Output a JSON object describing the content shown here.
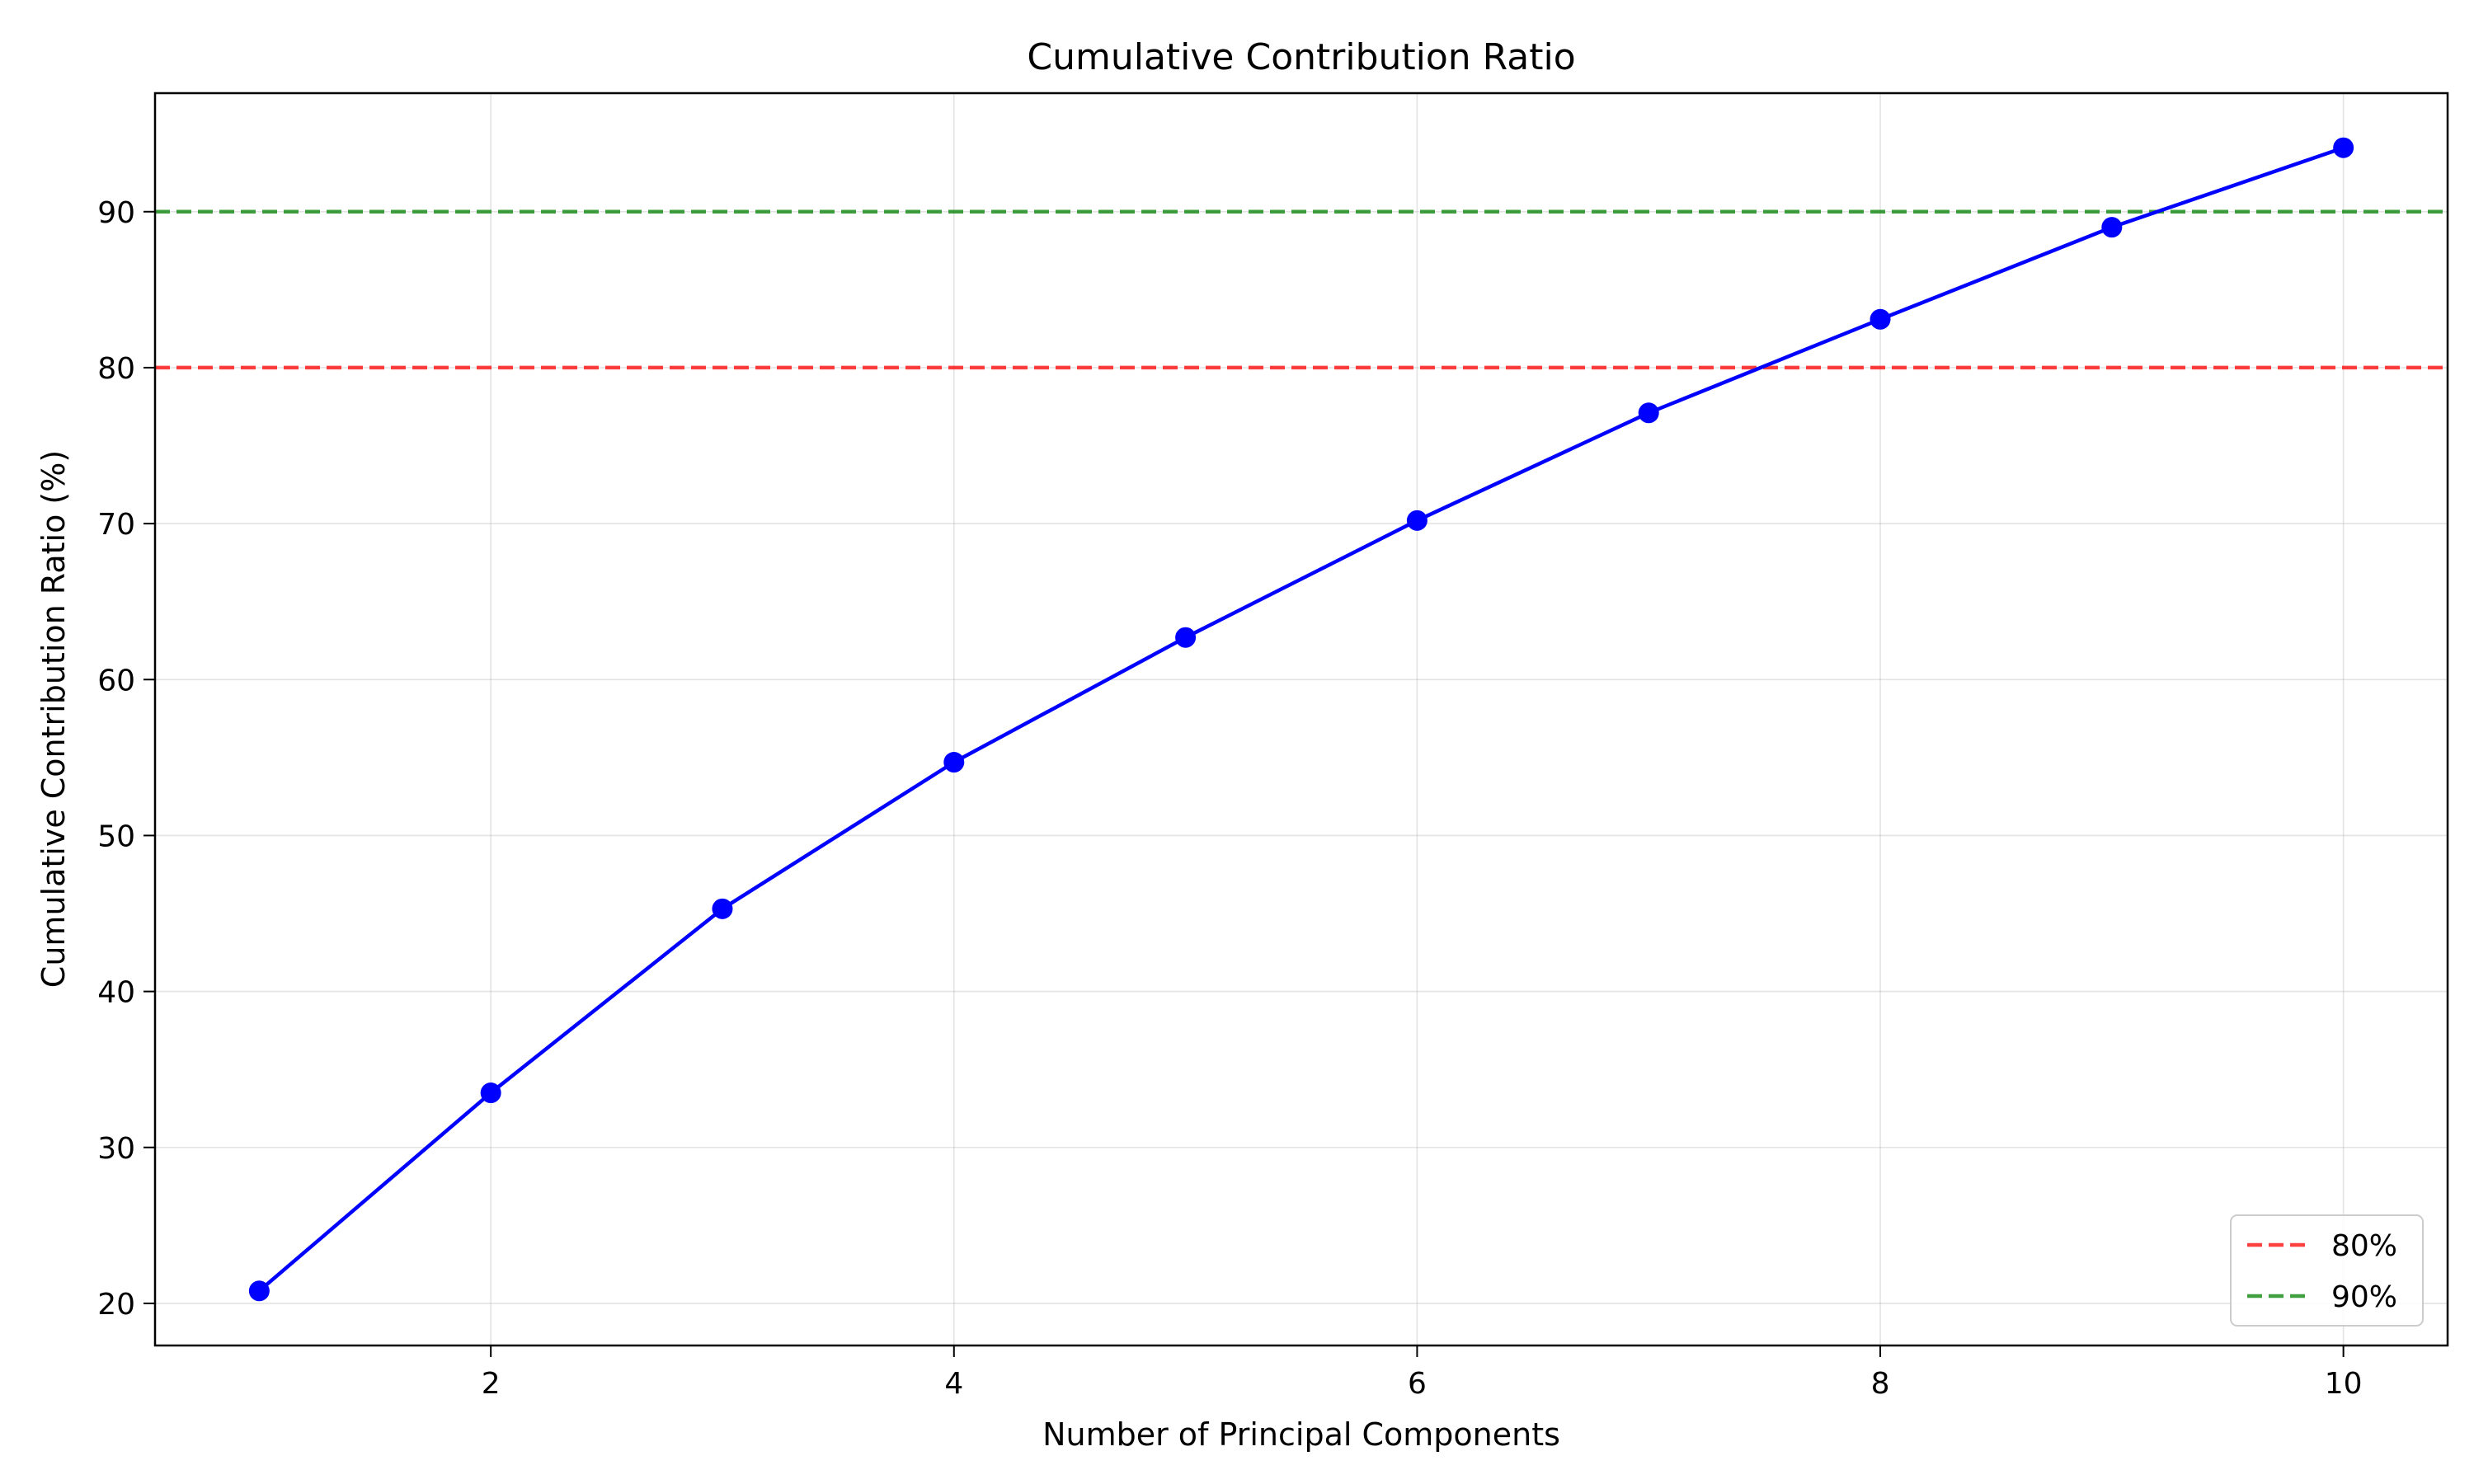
{
  "chart_data": {
    "type": "line",
    "title": "Cumulative Contribution Ratio",
    "xlabel": "Number of Principal Components",
    "ylabel": "Cumulative Contribution Ratio (%)",
    "xlim": [
      0.55,
      10.45
    ],
    "ylim": [
      17.3,
      97.6
    ],
    "x_ticks": [
      2,
      4,
      6,
      8,
      10
    ],
    "y_ticks": [
      20,
      30,
      40,
      50,
      60,
      70,
      80,
      90
    ],
    "grid": true,
    "legend_position": "lower-right",
    "series": [
      {
        "type": "line-markers",
        "color": "#0000ff",
        "x": [
          1,
          2,
          3,
          4,
          5,
          6,
          7,
          8,
          9,
          10
        ],
        "values": [
          20.8,
          33.5,
          45.3,
          54.7,
          62.7,
          70.2,
          77.1,
          83.1,
          89.0,
          94.1
        ]
      }
    ],
    "reference_lines": [
      {
        "name": "80%",
        "y": 80,
        "color": "#ff0000",
        "style": "dashed"
      },
      {
        "name": "90%",
        "y": 90,
        "color": "#008000",
        "style": "dashed"
      }
    ]
  }
}
